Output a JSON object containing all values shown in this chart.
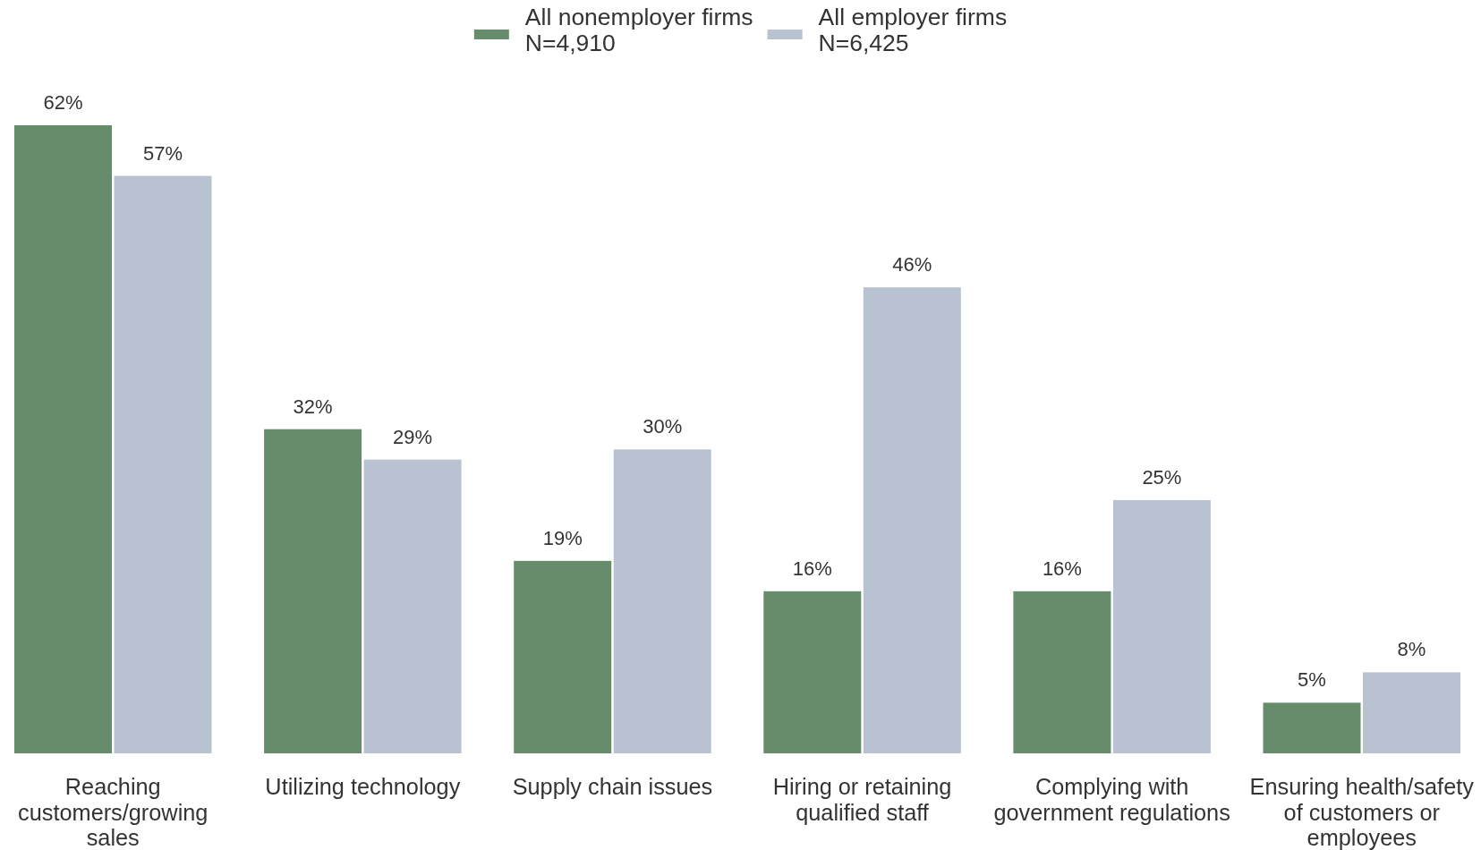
{
  "chart_data": {
    "type": "bar",
    "categories": [
      "Reaching customers/growing sales",
      "Utilizing technology",
      "Supply chain issues",
      "Hiring or retaining qualified staff",
      "Complying with government regulations",
      "Ensuring health/safety of customers or employees"
    ],
    "series": [
      {
        "name": "All nonemployer firms\nN=4,910",
        "color": "#678c6b",
        "values": [
          62,
          32,
          19,
          16,
          16,
          5
        ],
        "value_labels": [
          "62%",
          "32%",
          "19%",
          "16%",
          "16%",
          "5%"
        ]
      },
      {
        "name": "All employer firms\nN=6,425",
        "color": "#b8c2d0",
        "values": [
          57,
          29,
          30,
          46,
          25,
          8
        ],
        "value_labels": [
          "57%",
          "29%",
          "30%",
          "46%",
          "25%",
          "8%"
        ]
      }
    ],
    "legend": "top"
  }
}
